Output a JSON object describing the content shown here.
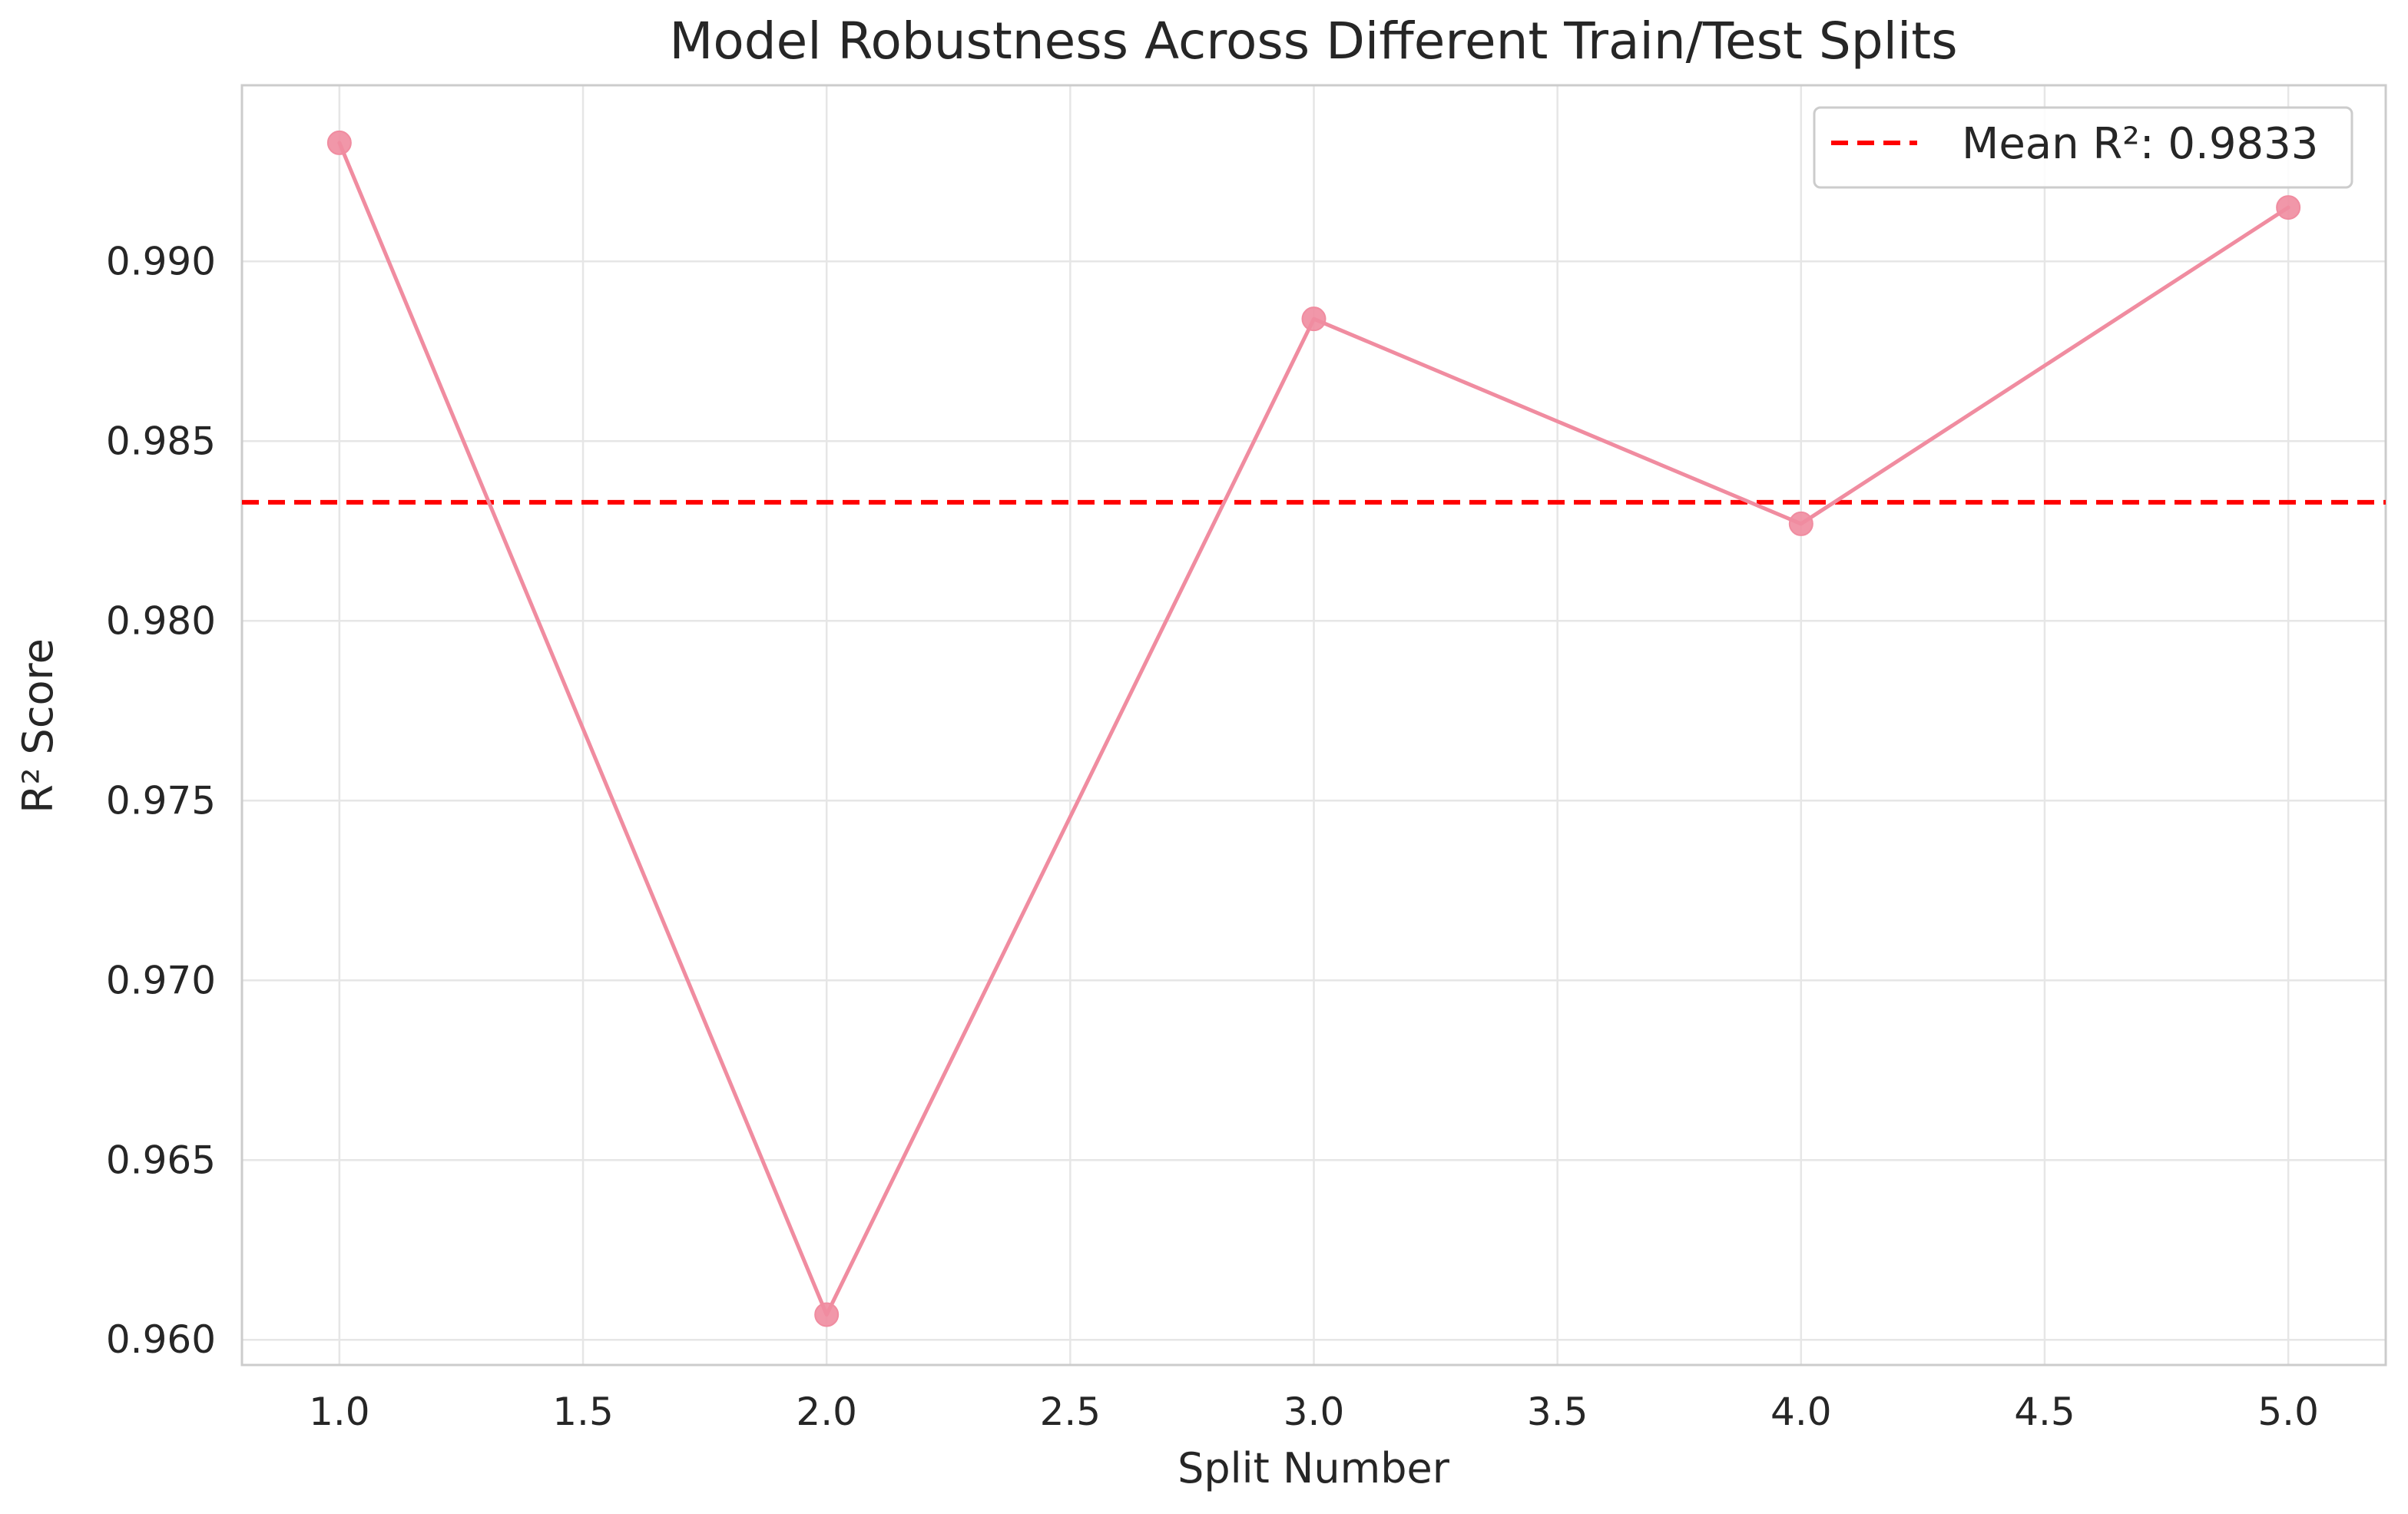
{
  "chart_data": {
    "type": "line",
    "title": "Model Robustness Across Different Train/Test Splits",
    "xlabel": "Split Number",
    "ylabel": "R² Score",
    "xlim": [
      0.8,
      5.2
    ],
    "ylim": [
      0.9593,
      0.9949
    ],
    "x_ticks": [
      "1.0",
      "1.5",
      "2.0",
      "2.5",
      "3.0",
      "3.5",
      "4.0",
      "4.5",
      "5.0"
    ],
    "y_ticks": [
      "0.960",
      "0.965",
      "0.970",
      "0.975",
      "0.980",
      "0.985",
      "0.990"
    ],
    "grid": true,
    "legend_position": "top-right",
    "series": [
      {
        "x": [
          1,
          2,
          3,
          4,
          5
        ],
        "values": [
          0.9933,
          0.9607,
          0.9884,
          0.9827,
          0.9915
        ],
        "color": "#f08ca0",
        "marker": "circle"
      }
    ],
    "reference_lines": [
      {
        "label": "Mean R²: 0.9833",
        "value": 0.9833,
        "color": "#ff0000",
        "style": "dashed"
      }
    ],
    "colors": {
      "grid": "#e6e6e6",
      "spine": "#cccccc",
      "text": "#262626",
      "background": "#ffffff"
    }
  }
}
